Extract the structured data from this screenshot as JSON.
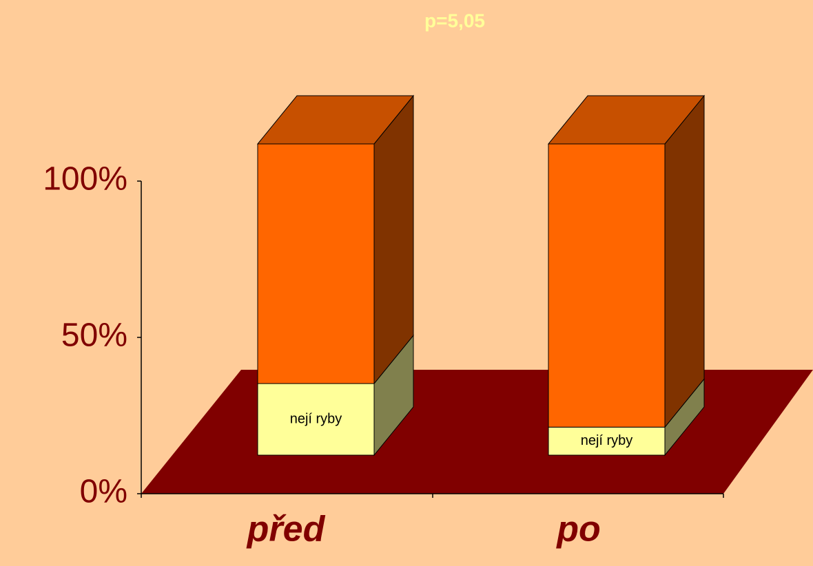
{
  "chart_data": {
    "type": "bar3d_stacked",
    "title": "p=5,05",
    "categories": [
      "před",
      "po"
    ],
    "series": [
      {
        "name": "nejí ryby",
        "color": "#ffff99",
        "values": [
          23,
          9
        ]
      },
      {
        "color": "#ff6600",
        "values": [
          77,
          91
        ]
      }
    ],
    "ylim": [
      0,
      100
    ],
    "yticks": [
      {
        "value": 0,
        "label": "0%"
      },
      {
        "value": 50,
        "label": "50%"
      },
      {
        "value": 100,
        "label": "100%"
      }
    ]
  }
}
